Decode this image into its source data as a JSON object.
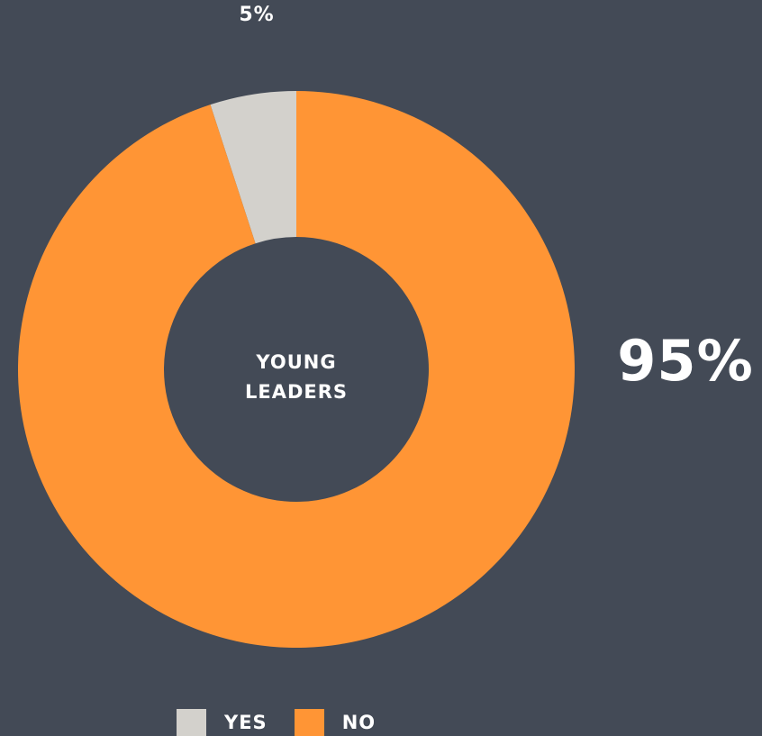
{
  "chart_data": {
    "type": "pie",
    "center_label": [
      "YOUNG",
      "LEADERS"
    ],
    "categories": [
      "YES",
      "NO"
    ],
    "values": [
      5,
      95
    ],
    "value_labels": [
      "5%",
      "95%"
    ],
    "colors": [
      "#d3d1cc",
      "#ff9535"
    ],
    "legend": "bottom",
    "background": "#434a56"
  }
}
